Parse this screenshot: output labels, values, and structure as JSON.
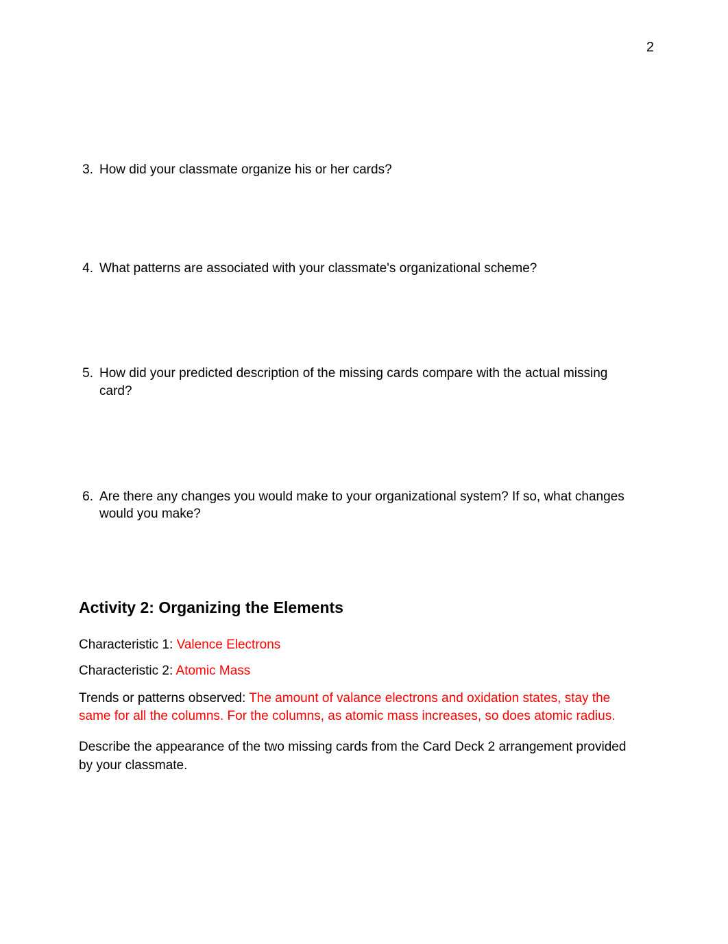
{
  "page_number": "2",
  "questions": [
    {
      "number": "3.",
      "text": "How did your classmate organize his or her cards?"
    },
    {
      "number": "4.",
      "text": "What patterns are associated with your classmate's organizational scheme?"
    },
    {
      "number": "5.",
      "text": "How did your predicted description of the missing cards compare with the actual missing card?"
    },
    {
      "number": "6.",
      "text": "Are there any changes you would make to your organizational system? If so, what changes would you make?"
    }
  ],
  "activity": {
    "heading": "Activity 2: Organizing the Elements",
    "char1_label": "Characteristic 1:",
    "char1_value": "Valence Electrons",
    "char2_label": "Characteristic 2:",
    "char2_value": "Atomic Mass",
    "trends_label": "Trends or patterns observed:",
    "trends_value": "The amount of valance electrons and oxidation states, stay the same for all the columns. For the columns, as atomic mass increases, so does atomic radius.",
    "describe_text": "Describe the appearance of the two missing cards from the Card Deck 2 arrangement provided by your classmate."
  },
  "colors": {
    "text": "#000000",
    "highlight": "#ff0000",
    "background": "#ffffff"
  },
  "typography": {
    "body_fontsize": 19,
    "heading_fontsize": 23,
    "page_number_fontsize": 20
  }
}
